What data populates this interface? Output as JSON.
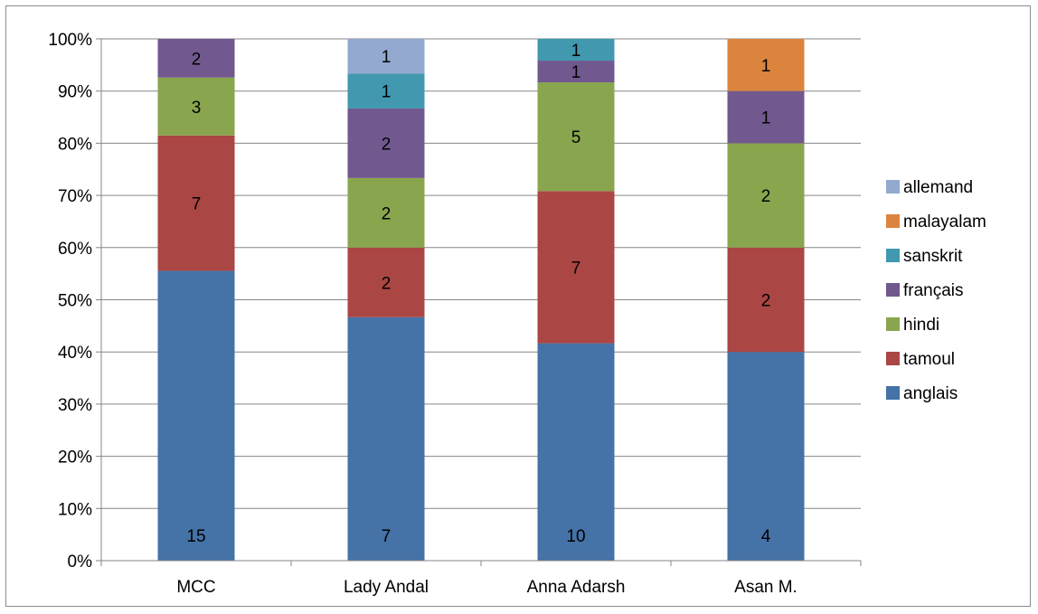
{
  "chart_data": {
    "type": "bar",
    "stacked": "percent",
    "title": "",
    "xlabel": "",
    "ylabel": "",
    "ylim": [
      0,
      100
    ],
    "y_ticks": [
      "0%",
      "10%",
      "20%",
      "30%",
      "40%",
      "50%",
      "60%",
      "70%",
      "80%",
      "90%",
      "100%"
    ],
    "grid": true,
    "legend_position": "right",
    "categories": [
      "MCC",
      "Lady Andal",
      "Anna Adarsh",
      "Asan M."
    ],
    "series": [
      {
        "name": "anglais",
        "color": "#4572a7",
        "values": [
          15,
          7,
          10,
          4
        ]
      },
      {
        "name": "tamoul",
        "color": "#aa4643",
        "values": [
          7,
          2,
          7,
          2
        ]
      },
      {
        "name": "hindi",
        "color": "#89a54e",
        "values": [
          3,
          2,
          5,
          2
        ]
      },
      {
        "name": "français",
        "color": "#71588f",
        "values": [
          2,
          2,
          1,
          1
        ]
      },
      {
        "name": "sanskrit",
        "color": "#4198af",
        "values": [
          0,
          1,
          1,
          0
        ]
      },
      {
        "name": "malayalam",
        "color": "#db843d",
        "values": [
          0,
          0,
          0,
          1
        ]
      },
      {
        "name": "allemand",
        "color": "#93a9cf",
        "values": [
          0,
          1,
          0,
          0
        ]
      }
    ]
  }
}
